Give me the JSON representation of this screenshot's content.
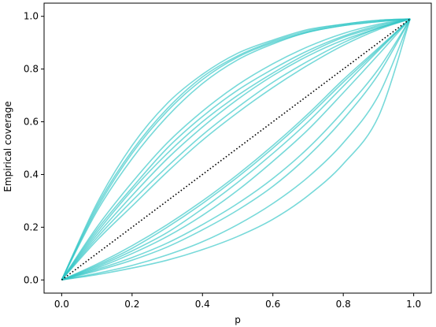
{
  "chart_data": {
    "type": "line",
    "title": "",
    "xlabel": "p",
    "ylabel": "Empirical coverage",
    "xlim": [
      -0.05,
      1.05
    ],
    "ylim": [
      -0.05,
      1.05
    ],
    "xticks": [
      0.0,
      0.2,
      0.4,
      0.6,
      0.8,
      1.0
    ],
    "xtick_labels": [
      "0.0",
      "0.2",
      "0.4",
      "0.6",
      "0.8",
      "1.0"
    ],
    "yticks": [
      0.0,
      0.2,
      0.4,
      0.6,
      0.8,
      1.0
    ],
    "ytick_labels": [
      "0.0",
      "0.2",
      "0.4",
      "0.6",
      "0.8",
      "1.0"
    ],
    "grid": false,
    "legend": "none",
    "series_color": "#2ec4c4",
    "reference_color": "#000000",
    "x": [
      0.0,
      0.1,
      0.2,
      0.3,
      0.4,
      0.5,
      0.6,
      0.7,
      0.8,
      0.9,
      0.99
    ],
    "reference": {
      "style": "dotted",
      "x": [
        0.0,
        0.99
      ],
      "values": [
        0.0,
        0.99
      ]
    },
    "series": [
      {
        "values": [
          0.0,
          0.29,
          0.51,
          0.67,
          0.78,
          0.86,
          0.91,
          0.95,
          0.97,
          0.985,
          0.99
        ]
      },
      {
        "values": [
          0.0,
          0.28,
          0.49,
          0.65,
          0.77,
          0.85,
          0.905,
          0.945,
          0.97,
          0.985,
          0.99
        ]
      },
      {
        "values": [
          0.0,
          0.27,
          0.48,
          0.64,
          0.76,
          0.845,
          0.9,
          0.94,
          0.965,
          0.98,
          0.99
        ]
      },
      {
        "values": [
          0.0,
          0.26,
          0.46,
          0.62,
          0.745,
          0.835,
          0.895,
          0.94,
          0.965,
          0.98,
          0.99
        ]
      },
      {
        "values": [
          0.0,
          0.2,
          0.37,
          0.52,
          0.64,
          0.74,
          0.82,
          0.885,
          0.935,
          0.97,
          0.99
        ]
      },
      {
        "values": [
          0.0,
          0.19,
          0.35,
          0.5,
          0.62,
          0.72,
          0.8,
          0.87,
          0.925,
          0.965,
          0.99
        ]
      },
      {
        "values": [
          0.0,
          0.18,
          0.34,
          0.48,
          0.6,
          0.7,
          0.785,
          0.86,
          0.92,
          0.96,
          0.99
        ]
      },
      {
        "values": [
          0.0,
          0.17,
          0.32,
          0.46,
          0.58,
          0.685,
          0.775,
          0.85,
          0.91,
          0.955,
          0.99
        ]
      },
      {
        "values": [
          0.0,
          0.16,
          0.3,
          0.43,
          0.55,
          0.655,
          0.75,
          0.83,
          0.9,
          0.955,
          0.99
        ]
      },
      {
        "values": [
          0.0,
          0.15,
          0.28,
          0.41,
          0.53,
          0.635,
          0.73,
          0.815,
          0.89,
          0.95,
          0.99
        ]
      },
      {
        "values": [
          0.0,
          0.06,
          0.13,
          0.21,
          0.3,
          0.4,
          0.51,
          0.63,
          0.76,
          0.88,
          0.99
        ]
      },
      {
        "values": [
          0.0,
          0.055,
          0.12,
          0.2,
          0.29,
          0.39,
          0.5,
          0.62,
          0.75,
          0.875,
          0.99
        ]
      },
      {
        "values": [
          0.0,
          0.05,
          0.11,
          0.18,
          0.27,
          0.37,
          0.48,
          0.6,
          0.735,
          0.87,
          0.99
        ]
      },
      {
        "values": [
          0.0,
          0.045,
          0.1,
          0.165,
          0.245,
          0.34,
          0.45,
          0.57,
          0.71,
          0.855,
          0.99
        ]
      },
      {
        "values": [
          0.0,
          0.04,
          0.085,
          0.14,
          0.21,
          0.29,
          0.385,
          0.5,
          0.64,
          0.8,
          0.99
        ]
      },
      {
        "values": [
          0.0,
          0.035,
          0.075,
          0.125,
          0.19,
          0.265,
          0.355,
          0.47,
          0.61,
          0.78,
          0.99
        ]
      },
      {
        "values": [
          0.0,
          0.025,
          0.055,
          0.095,
          0.145,
          0.21,
          0.29,
          0.39,
          0.52,
          0.7,
          0.99
        ]
      },
      {
        "values": [
          0.0,
          0.02,
          0.045,
          0.075,
          0.115,
          0.165,
          0.23,
          0.32,
          0.44,
          0.62,
          0.99
        ]
      }
    ]
  }
}
